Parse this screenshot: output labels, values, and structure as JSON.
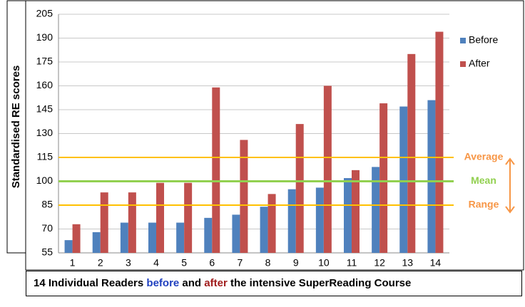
{
  "chart_data": {
    "type": "bar",
    "y_label": "Standardised RE scores",
    "categories": [
      "1",
      "2",
      "3",
      "4",
      "5",
      "6",
      "7",
      "8",
      "9",
      "10",
      "11",
      "12",
      "13",
      "14"
    ],
    "series": [
      {
        "name": "Before",
        "color": "#4f81bd",
        "values": [
          63,
          68,
          74,
          74,
          74,
          77,
          79,
          84,
          95,
          96,
          102,
          109,
          147,
          151
        ]
      },
      {
        "name": "After",
        "color": "#c0504d",
        "values": [
          73,
          93,
          93,
          99,
          99,
          159,
          126,
          92,
          136,
          160,
          107,
          149,
          180,
          194
        ]
      }
    ],
    "ylim": [
      55,
      205
    ],
    "yticks": [
      55,
      70,
      85,
      100,
      115,
      130,
      145,
      160,
      175,
      190,
      205
    ],
    "grid": true,
    "legend": "right",
    "reference_lines": [
      {
        "label": "Average",
        "value": 115,
        "color": "#ffc000",
        "label_color": "#f79646"
      },
      {
        "label": "Mean",
        "value": 100,
        "color": "#92d050",
        "label_color": "#92d050"
      },
      {
        "label": "Range",
        "value": 85,
        "color": "#ffc000",
        "label_color": "#f79646"
      }
    ],
    "caption": [
      {
        "text": "14 Individual Readers ",
        "color": "#000000"
      },
      {
        "text": "before",
        "color": "#1f3fbf"
      },
      {
        "text": " and ",
        "color": "#000000"
      },
      {
        "text": "after",
        "color": "#a01c1c"
      },
      {
        "text": " the intensive SuperReading Course",
        "color": "#000000"
      }
    ]
  }
}
